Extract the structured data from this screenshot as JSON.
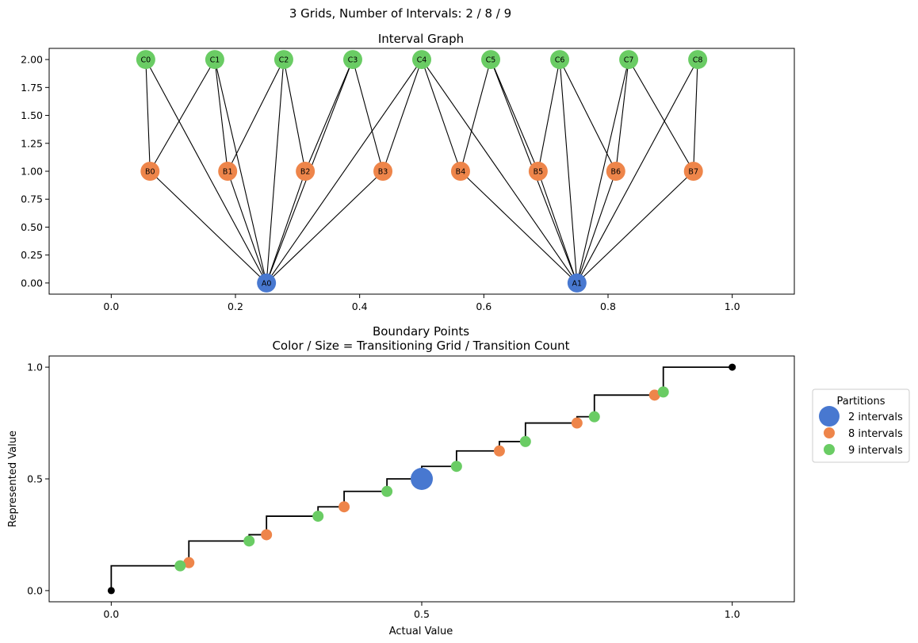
{
  "suptitle": "3 Grids, Number of Intervals: 2 / 8 / 9",
  "colors": {
    "grid2": "#4878d0",
    "grid8": "#ee854a",
    "grid9": "#6acc64",
    "line": "#000000"
  },
  "chart_data": [
    {
      "type": "graph",
      "title": "Interval Graph",
      "xlim": [
        -0.1,
        1.1
      ],
      "ylim": [
        -0.1,
        2.1
      ],
      "xticks": [
        0.0,
        0.2,
        0.4,
        0.6,
        0.8,
        1.0
      ],
      "xtick_labels": [
        "0.0",
        "0.2",
        "0.4",
        "0.6",
        "0.8",
        "1.0"
      ],
      "yticks": [
        0.0,
        0.25,
        0.5,
        0.75,
        1.0,
        1.25,
        1.5,
        1.75,
        2.0
      ],
      "ytick_labels": [
        "0.00",
        "0.25",
        "0.50",
        "0.75",
        "1.00",
        "1.25",
        "1.50",
        "1.75",
        "2.00"
      ],
      "nodes": [
        {
          "id": "A0",
          "x": 0.25,
          "y": 0,
          "grid": "grid2"
        },
        {
          "id": "A1",
          "x": 0.75,
          "y": 0,
          "grid": "grid2"
        },
        {
          "id": "B0",
          "x": 0.0625,
          "y": 1,
          "grid": "grid8"
        },
        {
          "id": "B1",
          "x": 0.1875,
          "y": 1,
          "grid": "grid8"
        },
        {
          "id": "B2",
          "x": 0.3125,
          "y": 1,
          "grid": "grid8"
        },
        {
          "id": "B3",
          "x": 0.4375,
          "y": 1,
          "grid": "grid8"
        },
        {
          "id": "B4",
          "x": 0.5625,
          "y": 1,
          "grid": "grid8"
        },
        {
          "id": "B5",
          "x": 0.6875,
          "y": 1,
          "grid": "grid8"
        },
        {
          "id": "B6",
          "x": 0.8125,
          "y": 1,
          "grid": "grid8"
        },
        {
          "id": "B7",
          "x": 0.9375,
          "y": 1,
          "grid": "grid8"
        },
        {
          "id": "C0",
          "x": 0.0556,
          "y": 2,
          "grid": "grid9"
        },
        {
          "id": "C1",
          "x": 0.1667,
          "y": 2,
          "grid": "grid9"
        },
        {
          "id": "C2",
          "x": 0.2778,
          "y": 2,
          "grid": "grid9"
        },
        {
          "id": "C3",
          "x": 0.3889,
          "y": 2,
          "grid": "grid9"
        },
        {
          "id": "C4",
          "x": 0.5,
          "y": 2,
          "grid": "grid9"
        },
        {
          "id": "C5",
          "x": 0.6111,
          "y": 2,
          "grid": "grid9"
        },
        {
          "id": "C6",
          "x": 0.7222,
          "y": 2,
          "grid": "grid9"
        },
        {
          "id": "C7",
          "x": 0.8333,
          "y": 2,
          "grid": "grid9"
        },
        {
          "id": "C8",
          "x": 0.9444,
          "y": 2,
          "grid": "grid9"
        }
      ],
      "edges": [
        [
          "A0",
          "B0"
        ],
        [
          "A0",
          "B1"
        ],
        [
          "A0",
          "B2"
        ],
        [
          "A0",
          "B3"
        ],
        [
          "A1",
          "B4"
        ],
        [
          "A1",
          "B5"
        ],
        [
          "A1",
          "B6"
        ],
        [
          "A1",
          "B7"
        ],
        [
          "A0",
          "C0"
        ],
        [
          "A0",
          "C1"
        ],
        [
          "A0",
          "C2"
        ],
        [
          "A0",
          "C3"
        ],
        [
          "A0",
          "C4"
        ],
        [
          "A1",
          "C4"
        ],
        [
          "A1",
          "C5"
        ],
        [
          "A1",
          "C6"
        ],
        [
          "A1",
          "C7"
        ],
        [
          "A1",
          "C8"
        ],
        [
          "B0",
          "C0"
        ],
        [
          "B0",
          "C1"
        ],
        [
          "B1",
          "C1"
        ],
        [
          "B1",
          "C2"
        ],
        [
          "B2",
          "C2"
        ],
        [
          "B2",
          "C3"
        ],
        [
          "B3",
          "C3"
        ],
        [
          "B3",
          "C4"
        ],
        [
          "B4",
          "C4"
        ],
        [
          "B4",
          "C5"
        ],
        [
          "B5",
          "C5"
        ],
        [
          "B5",
          "C6"
        ],
        [
          "B6",
          "C6"
        ],
        [
          "B6",
          "C7"
        ],
        [
          "B7",
          "C7"
        ],
        [
          "B7",
          "C8"
        ]
      ]
    },
    {
      "type": "scatter",
      "title": "Boundary Points",
      "subtitle": "Color / Size = Transitioning Grid / Transition Count",
      "xlabel": "Actual Value",
      "ylabel": "Represented Value",
      "xlim": [
        -0.1,
        1.1
      ],
      "ylim": [
        -0.05,
        1.05
      ],
      "xticks": [
        0.0,
        0.5,
        1.0
      ],
      "xtick_labels": [
        "0.0",
        "0.5",
        "1.0"
      ],
      "yticks": [
        0.0,
        0.5,
        1.0
      ],
      "ytick_labels": [
        "0.0",
        "0.5",
        "1.0"
      ],
      "step_line": [
        [
          0,
          0
        ],
        [
          0,
          0.111
        ],
        [
          0.125,
          0.111
        ],
        [
          0.125,
          0.222
        ],
        [
          0.222,
          0.222
        ],
        [
          0.222,
          0.25
        ],
        [
          0.25,
          0.25
        ],
        [
          0.25,
          0.333
        ],
        [
          0.333,
          0.333
        ],
        [
          0.333,
          0.375
        ],
        [
          0.375,
          0.375
        ],
        [
          0.375,
          0.444
        ],
        [
          0.444,
          0.444
        ],
        [
          0.444,
          0.5
        ],
        [
          0.5,
          0.5
        ],
        [
          0.5,
          0.556
        ],
        [
          0.556,
          0.556
        ],
        [
          0.556,
          0.625
        ],
        [
          0.625,
          0.625
        ],
        [
          0.625,
          0.667
        ],
        [
          0.667,
          0.667
        ],
        [
          0.667,
          0.75
        ],
        [
          0.75,
          0.75
        ],
        [
          0.75,
          0.778
        ],
        [
          0.778,
          0.778
        ],
        [
          0.778,
          0.875
        ],
        [
          0.875,
          0.875
        ],
        [
          0.875,
          0.889
        ],
        [
          0.889,
          0.889
        ],
        [
          0.889,
          1.0
        ],
        [
          1.0,
          1.0
        ]
      ],
      "endpoints": [
        {
          "x": 0.0,
          "y": 0.0
        },
        {
          "x": 1.0,
          "y": 1.0
        }
      ],
      "series": [
        {
          "name": "2 intervals",
          "grid": "grid2",
          "size": "large",
          "points": [
            {
              "x": 0.5,
              "y": 0.5
            }
          ]
        },
        {
          "name": "8 intervals",
          "grid": "grid8",
          "size": "small",
          "points": [
            {
              "x": 0.125,
              "y": 0.125
            },
            {
              "x": 0.25,
              "y": 0.25
            },
            {
              "x": 0.375,
              "y": 0.375
            },
            {
              "x": 0.625,
              "y": 0.625
            },
            {
              "x": 0.75,
              "y": 0.75
            },
            {
              "x": 0.875,
              "y": 0.875
            }
          ]
        },
        {
          "name": "9 intervals",
          "grid": "grid9",
          "size": "small",
          "points": [
            {
              "x": 0.111,
              "y": 0.111
            },
            {
              "x": 0.222,
              "y": 0.222
            },
            {
              "x": 0.333,
              "y": 0.333
            },
            {
              "x": 0.444,
              "y": 0.444
            },
            {
              "x": 0.556,
              "y": 0.556
            },
            {
              "x": 0.667,
              "y": 0.667
            },
            {
              "x": 0.778,
              "y": 0.778
            },
            {
              "x": 0.889,
              "y": 0.889
            }
          ]
        }
      ],
      "legend": {
        "title": "Partitions",
        "placement": "outside right",
        "entries": [
          "2 intervals",
          "8 intervals",
          "9 intervals"
        ]
      }
    }
  ]
}
